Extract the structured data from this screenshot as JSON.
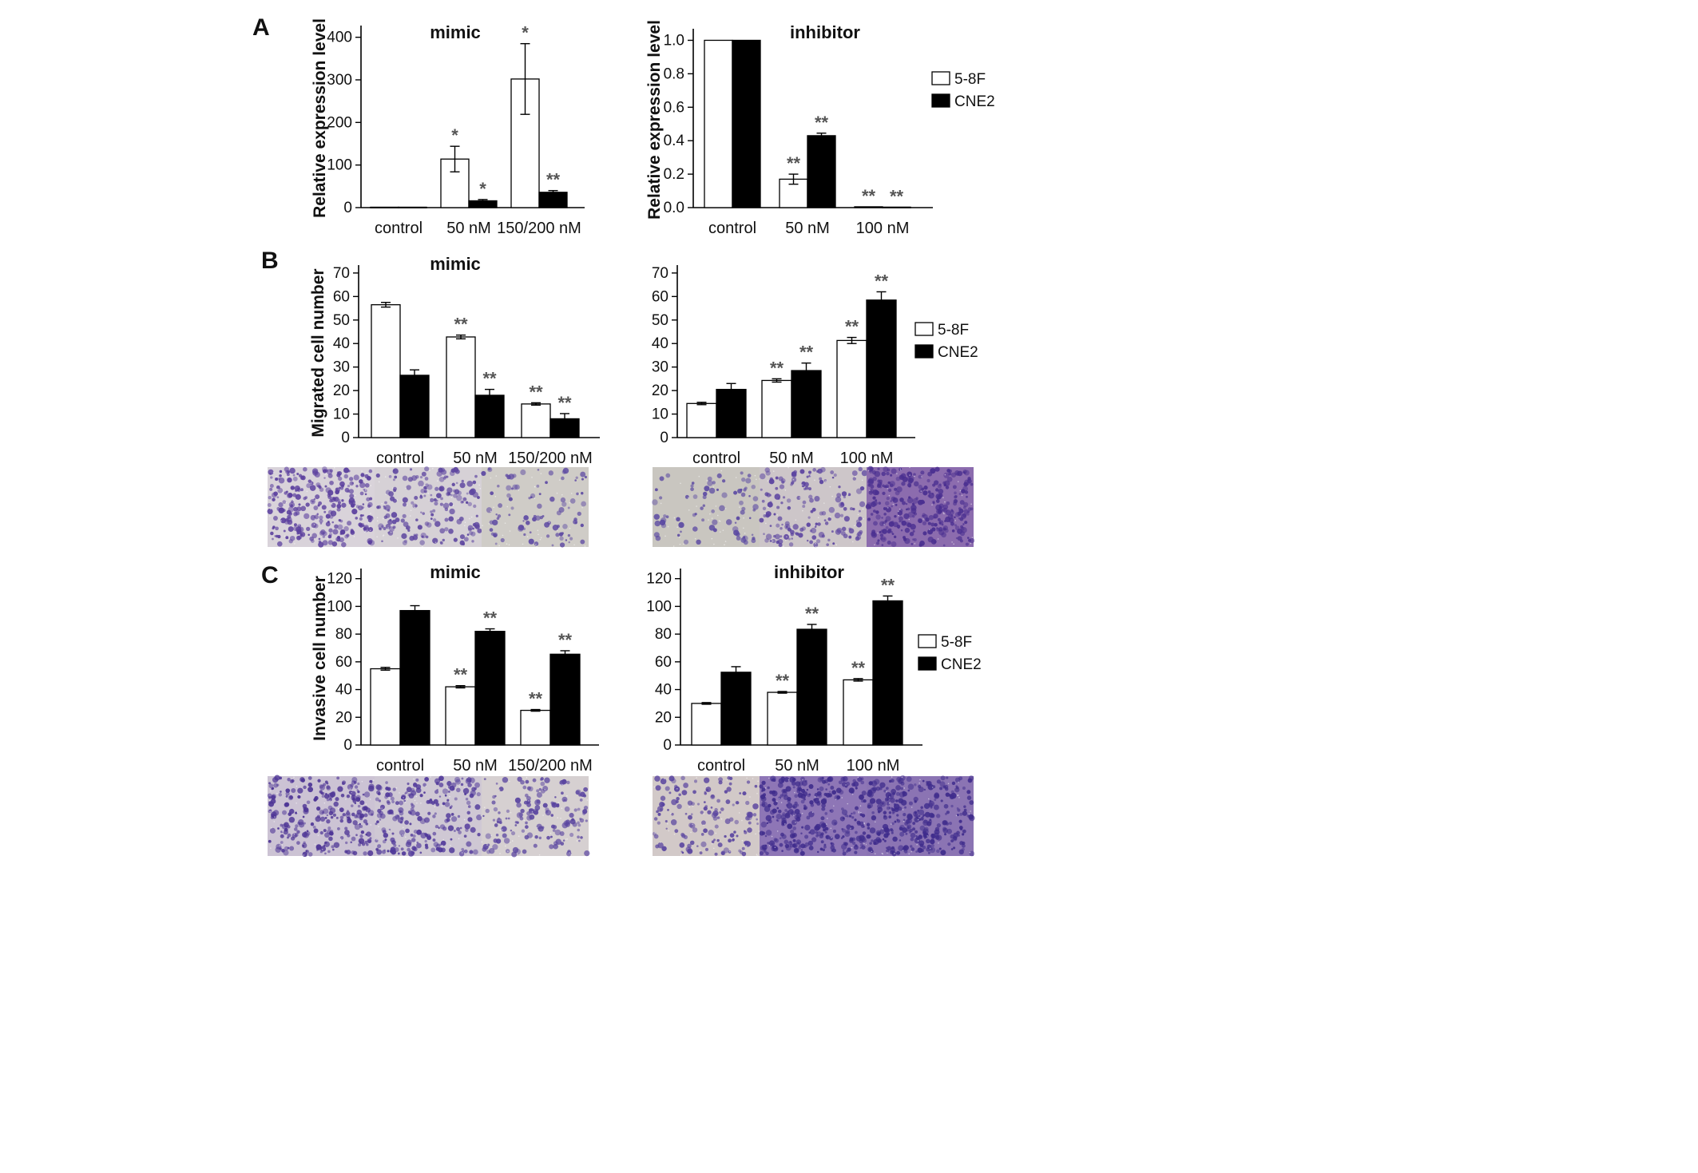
{
  "panel_letters": [
    "A",
    "B",
    "C"
  ],
  "legend": {
    "entries": [
      {
        "name": "5-8F",
        "fill": "#ffffff"
      },
      {
        "name": "CNE2",
        "fill": "#000000"
      }
    ]
  },
  "colors": {
    "series_5_8F": "#ffffff",
    "series_CNE2": "#000000",
    "axis": "#000000",
    "sig": "#555555"
  },
  "micrographs": {
    "B_mimic": [
      {
        "label": "control",
        "base": "#d9d3da",
        "cell": "#5b3f9e",
        "density": 0.85
      },
      {
        "label": "50 nM",
        "base": "#d6d1d6",
        "cell": "#5e46a0",
        "density": 0.55
      },
      {
        "label": "150/200 nM",
        "base": "#cfccc7",
        "cell": "#5e4aa3",
        "density": 0.3
      }
    ],
    "B_inhibitor": [
      {
        "label": "control",
        "base": "#c9c6c0",
        "cell": "#5a48a2",
        "density": 0.25
      },
      {
        "label": "50 nM",
        "base": "#cdc6c9",
        "cell": "#5b43a0",
        "density": 0.5
      },
      {
        "label": "100 nM",
        "base": "#8c6cae",
        "cell": "#4a2f90",
        "density": 0.95
      }
    ],
    "C_mimic": [
      {
        "label": "control",
        "base": "#ccc3d4",
        "cell": "#4e3596",
        "density": 0.8
      },
      {
        "label": "50 nM",
        "base": "#cfc8d4",
        "cell": "#50389a",
        "density": 0.7
      },
      {
        "label": "150/200 nM",
        "base": "#d6d0d1",
        "cell": "#5a45a0",
        "density": 0.5
      }
    ],
    "C_inhibitor": [
      {
        "label": "control",
        "base": "#d2c9c8",
        "cell": "#5a45a0",
        "density": 0.45
      },
      {
        "label": "50 nM",
        "base": "#8e76b6",
        "cell": "#3f2c8c",
        "density": 0.95
      },
      {
        "label": "100 nM",
        "base": "#8b74b3",
        "cell": "#3f2c8c",
        "density": 0.95
      }
    ]
  },
  "chart_data": [
    {
      "id": "A_mimic",
      "type": "bar",
      "title": "mimic",
      "ylabel": "Relative expression level",
      "xlabel": "",
      "ylim": [
        0,
        420
      ],
      "yticks": [
        0,
        100,
        200,
        300,
        400
      ],
      "ytick_labels": [
        "0",
        "100",
        "200",
        "300",
        "400"
      ],
      "categories": [
        "control",
        "50 nM",
        "150/200 nM"
      ],
      "series": [
        {
          "name": "5-8F",
          "values": [
            1,
            114,
            302
          ],
          "errors": [
            0,
            30,
            83
          ],
          "sig": [
            "",
            "*",
            "*"
          ]
        },
        {
          "name": "CNE2",
          "values": [
            1,
            16,
            36
          ],
          "errors": [
            0,
            3,
            4
          ],
          "sig": [
            "",
            "*",
            "**"
          ]
        }
      ]
    },
    {
      "id": "A_inhibitor",
      "type": "bar",
      "title": "inhibitor",
      "ylabel": "Relative expression level",
      "xlabel": "",
      "ylim": [
        0,
        1.05
      ],
      "yticks": [
        0,
        0.2,
        0.4,
        0.6,
        0.8,
        1.0
      ],
      "ytick_labels": [
        "0.0",
        "0.2",
        "0.4",
        "0.6",
        "0.8",
        "1.0"
      ],
      "categories": [
        "control",
        "50 nM",
        "100 nM"
      ],
      "series": [
        {
          "name": "5-8F",
          "values": [
            1.0,
            0.17,
            0.005
          ],
          "errors": [
            0,
            0.03,
            0
          ],
          "sig": [
            "",
            "**",
            "**"
          ]
        },
        {
          "name": "CNE2",
          "values": [
            1.0,
            0.43,
            0.003
          ],
          "errors": [
            0,
            0.015,
            0
          ],
          "sig": [
            "",
            "**",
            "**"
          ]
        }
      ]
    },
    {
      "id": "B_mimic",
      "type": "bar",
      "title": "mimic",
      "ylabel": "Migrated cell number",
      "xlabel": "",
      "ylim": [
        0,
        72
      ],
      "yticks": [
        0,
        10,
        20,
        30,
        40,
        50,
        60,
        70
      ],
      "ytick_labels": [
        "0",
        "10",
        "20",
        "30",
        "40",
        "50",
        "60",
        "70"
      ],
      "categories": [
        "control",
        "50 nM",
        "150/200 nM"
      ],
      "series": [
        {
          "name": "5-8F",
          "values": [
            56.5,
            42.8,
            14.3
          ],
          "errors": [
            1.0,
            0.8,
            0.5
          ],
          "sig": [
            "",
            "**",
            "**"
          ]
        },
        {
          "name": "CNE2",
          "values": [
            26.5,
            18.0,
            8.0
          ],
          "errors": [
            2.3,
            2.5,
            2.2
          ],
          "sig": [
            "",
            "**",
            "**"
          ]
        }
      ]
    },
    {
      "id": "B_inhibitor",
      "type": "bar",
      "title": "",
      "ylabel": "",
      "xlabel": "",
      "ylim": [
        0,
        72
      ],
      "yticks": [
        0,
        10,
        20,
        30,
        40,
        50,
        60,
        70
      ],
      "ytick_labels": [
        "0",
        "10",
        "20",
        "30",
        "40",
        "50",
        "60",
        "70"
      ],
      "categories": [
        "control",
        "50 nM",
        "100 nM"
      ],
      "series": [
        {
          "name": "5-8F",
          "values": [
            14.5,
            24.3,
            41.3
          ],
          "errors": [
            0.5,
            0.7,
            1.3
          ],
          "sig": [
            "",
            "**",
            "**"
          ]
        },
        {
          "name": "CNE2",
          "values": [
            20.5,
            28.5,
            58.5
          ],
          "errors": [
            2.5,
            3.2,
            3.5
          ],
          "sig": [
            "",
            "**",
            "**"
          ]
        }
      ]
    },
    {
      "id": "C_mimic",
      "type": "bar",
      "title": "mimic",
      "ylabel": "Invasive cell number",
      "xlabel": "",
      "ylim": [
        0,
        125
      ],
      "yticks": [
        0,
        20,
        40,
        60,
        80,
        100,
        120
      ],
      "ytick_labels": [
        "0",
        "20",
        "40",
        "60",
        "80",
        "100",
        "120"
      ],
      "categories": [
        "control",
        "50 nM",
        "150/200 nM"
      ],
      "series": [
        {
          "name": "5-8F",
          "values": [
            55,
            42,
            25
          ],
          "errors": [
            1.0,
            0.8,
            0.6
          ],
          "sig": [
            "",
            "**",
            "**"
          ]
        },
        {
          "name": "CNE2",
          "values": [
            97,
            82,
            65.5
          ],
          "errors": [
            3.5,
            1.8,
            2.5
          ],
          "sig": [
            "",
            "**",
            "**"
          ]
        }
      ]
    },
    {
      "id": "C_inhibitor",
      "type": "bar",
      "title": "inhibitor",
      "ylabel": "",
      "xlabel": "",
      "ylim": [
        0,
        125
      ],
      "yticks": [
        0,
        20,
        40,
        60,
        80,
        100,
        120
      ],
      "ytick_labels": [
        "0",
        "20",
        "40",
        "60",
        "80",
        "100",
        "120"
      ],
      "categories": [
        "control",
        "50 nM",
        "100 nM"
      ],
      "series": [
        {
          "name": "5-8F",
          "values": [
            30,
            38,
            47
          ],
          "errors": [
            0.6,
            0.6,
            0.9
          ],
          "sig": [
            "",
            "**",
            "**"
          ]
        },
        {
          "name": "CNE2",
          "values": [
            52.5,
            83.5,
            104
          ],
          "errors": [
            4.0,
            3.5,
            3.5
          ],
          "sig": [
            "",
            "**",
            "**"
          ]
        }
      ]
    }
  ]
}
